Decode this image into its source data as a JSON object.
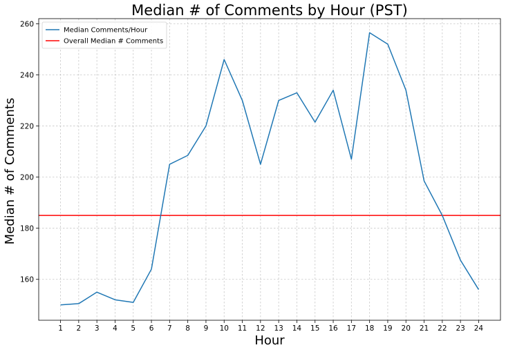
{
  "chart_data": {
    "type": "line",
    "title": "Median # of Comments by Hour (PST)",
    "xlabel": "Hour",
    "ylabel": "Median # of Comments",
    "x": [
      1,
      2,
      3,
      4,
      5,
      6,
      7,
      8,
      9,
      10,
      11,
      12,
      13,
      14,
      15,
      16,
      17,
      18,
      19,
      20,
      21,
      22,
      23,
      24
    ],
    "xlim": [
      -0.2,
      25.2
    ],
    "ylim": [
      144,
      262
    ],
    "yticks": [
      160,
      180,
      200,
      220,
      240,
      260
    ],
    "grid": true,
    "legend_position": "top-left",
    "series": [
      {
        "name": "Median Comments/Hour",
        "color": "#1f77b4",
        "values": [
          150,
          150.5,
          155,
          152,
          151,
          164,
          205,
          208.5,
          220,
          246,
          230,
          205,
          230,
          233,
          221.5,
          234,
          207,
          256.5,
          252,
          234,
          198.5,
          185,
          167.5,
          156
        ]
      }
    ],
    "reference_lines": [
      {
        "name": "Overall Median # Comments",
        "orientation": "horizontal",
        "y": 185,
        "color": "#ff0000"
      }
    ]
  }
}
